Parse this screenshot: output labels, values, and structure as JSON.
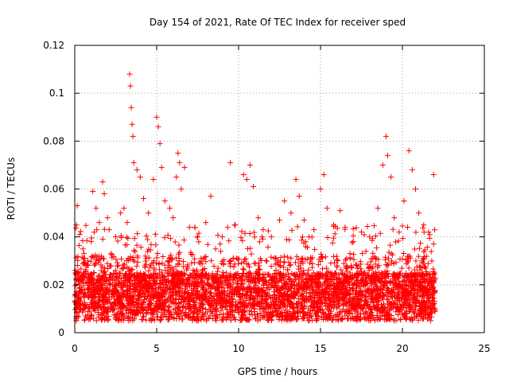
{
  "chart_data": {
    "type": "scatter",
    "title": "Day 154 of 2021, Rate Of TEC Index for receiver sped",
    "xlabel": "GPS time / hours",
    "ylabel": "ROTI / TECUs",
    "xlim": [
      0,
      25
    ],
    "ylim": [
      0,
      0.12
    ],
    "xticks": [
      "0",
      "5",
      "10",
      "15",
      "20",
      "25"
    ],
    "yticks": [
      "0",
      "0.02",
      "0.04",
      "0.06",
      "0.08",
      "0.1",
      "0.12"
    ],
    "grid": true,
    "marker": "+",
    "color": "#ff0000",
    "data_x_range": [
      0,
      22
    ],
    "series": [
      {
        "points": [
          [
            0.1,
            0.045
          ],
          [
            0.15,
            0.053
          ],
          [
            0.3,
            0.041
          ],
          [
            0.5,
            0.035
          ],
          [
            0.8,
            0.03
          ],
          [
            1.0,
            0.038
          ],
          [
            1.1,
            0.059
          ],
          [
            1.3,
            0.052
          ],
          [
            1.5,
            0.046
          ],
          [
            1.7,
            0.063
          ],
          [
            1.8,
            0.058
          ],
          [
            2.0,
            0.048
          ],
          [
            2.1,
            0.043
          ],
          [
            2.2,
            0.033
          ],
          [
            2.5,
            0.04
          ],
          [
            2.8,
            0.05
          ],
          [
            3.0,
            0.052
          ],
          [
            3.2,
            0.046
          ],
          [
            3.35,
            0.108
          ],
          [
            3.4,
            0.103
          ],
          [
            3.45,
            0.094
          ],
          [
            3.5,
            0.087
          ],
          [
            3.55,
            0.082
          ],
          [
            3.6,
            0.071
          ],
          [
            3.8,
            0.068
          ],
          [
            4.0,
            0.065
          ],
          [
            4.2,
            0.056
          ],
          [
            4.5,
            0.05
          ],
          [
            4.8,
            0.064
          ],
          [
            5.0,
            0.09
          ],
          [
            5.1,
            0.086
          ],
          [
            5.2,
            0.079
          ],
          [
            5.3,
            0.069
          ],
          [
            5.5,
            0.055
          ],
          [
            5.8,
            0.052
          ],
          [
            6.0,
            0.048
          ],
          [
            6.2,
            0.065
          ],
          [
            6.3,
            0.075
          ],
          [
            6.4,
            0.071
          ],
          [
            6.5,
            0.06
          ],
          [
            6.7,
            0.069
          ],
          [
            7.0,
            0.044
          ],
          [
            7.5,
            0.04
          ],
          [
            8.0,
            0.046
          ],
          [
            8.3,
            0.057
          ],
          [
            8.6,
            0.035
          ],
          [
            9.0,
            0.04
          ],
          [
            9.5,
            0.071
          ],
          [
            9.8,
            0.045
          ],
          [
            10.3,
            0.066
          ],
          [
            10.5,
            0.064
          ],
          [
            10.7,
            0.07
          ],
          [
            10.9,
            0.061
          ],
          [
            11.2,
            0.048
          ],
          [
            11.5,
            0.043
          ],
          [
            12.0,
            0.04
          ],
          [
            12.5,
            0.047
          ],
          [
            12.8,
            0.055
          ],
          [
            13.2,
            0.05
          ],
          [
            13.5,
            0.064
          ],
          [
            13.7,
            0.057
          ],
          [
            14.0,
            0.047
          ],
          [
            14.3,
            0.04
          ],
          [
            14.6,
            0.043
          ],
          [
            15.0,
            0.06
          ],
          [
            15.2,
            0.066
          ],
          [
            15.4,
            0.052
          ],
          [
            15.8,
            0.045
          ],
          [
            16.2,
            0.051
          ],
          [
            16.5,
            0.044
          ],
          [
            17.0,
            0.038
          ],
          [
            17.5,
            0.042
          ],
          [
            18.0,
            0.04
          ],
          [
            18.5,
            0.052
          ],
          [
            18.8,
            0.07
          ],
          [
            19.0,
            0.082
          ],
          [
            19.1,
            0.074
          ],
          [
            19.3,
            0.065
          ],
          [
            19.5,
            0.048
          ],
          [
            19.8,
            0.042
          ],
          [
            20.1,
            0.055
          ],
          [
            20.4,
            0.076
          ],
          [
            20.6,
            0.068
          ],
          [
            20.8,
            0.06
          ],
          [
            21.0,
            0.05
          ],
          [
            21.3,
            0.045
          ],
          [
            21.6,
            0.042
          ],
          [
            21.9,
            0.066
          ]
        ]
      }
    ]
  }
}
